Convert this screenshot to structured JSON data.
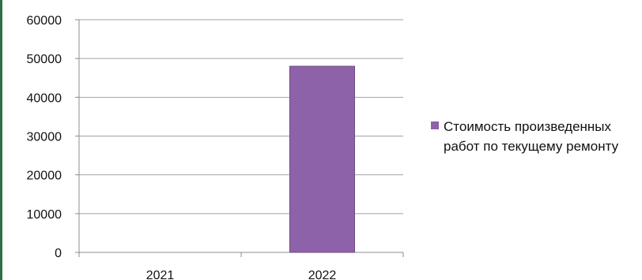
{
  "chart_data": {
    "type": "bar",
    "categories": [
      "2021",
      "2022"
    ],
    "series": [
      {
        "name": "Стоимость произведенных работ по текущему ремонту",
        "values": [
          0,
          48000
        ],
        "color": "#8e62a8"
      }
    ],
    "ylim": [
      0,
      60000
    ],
    "yticks": [
      "0",
      "10000",
      "20000",
      "30000",
      "40000",
      "50000",
      "60000"
    ],
    "grid": true,
    "legend_position": "right"
  }
}
